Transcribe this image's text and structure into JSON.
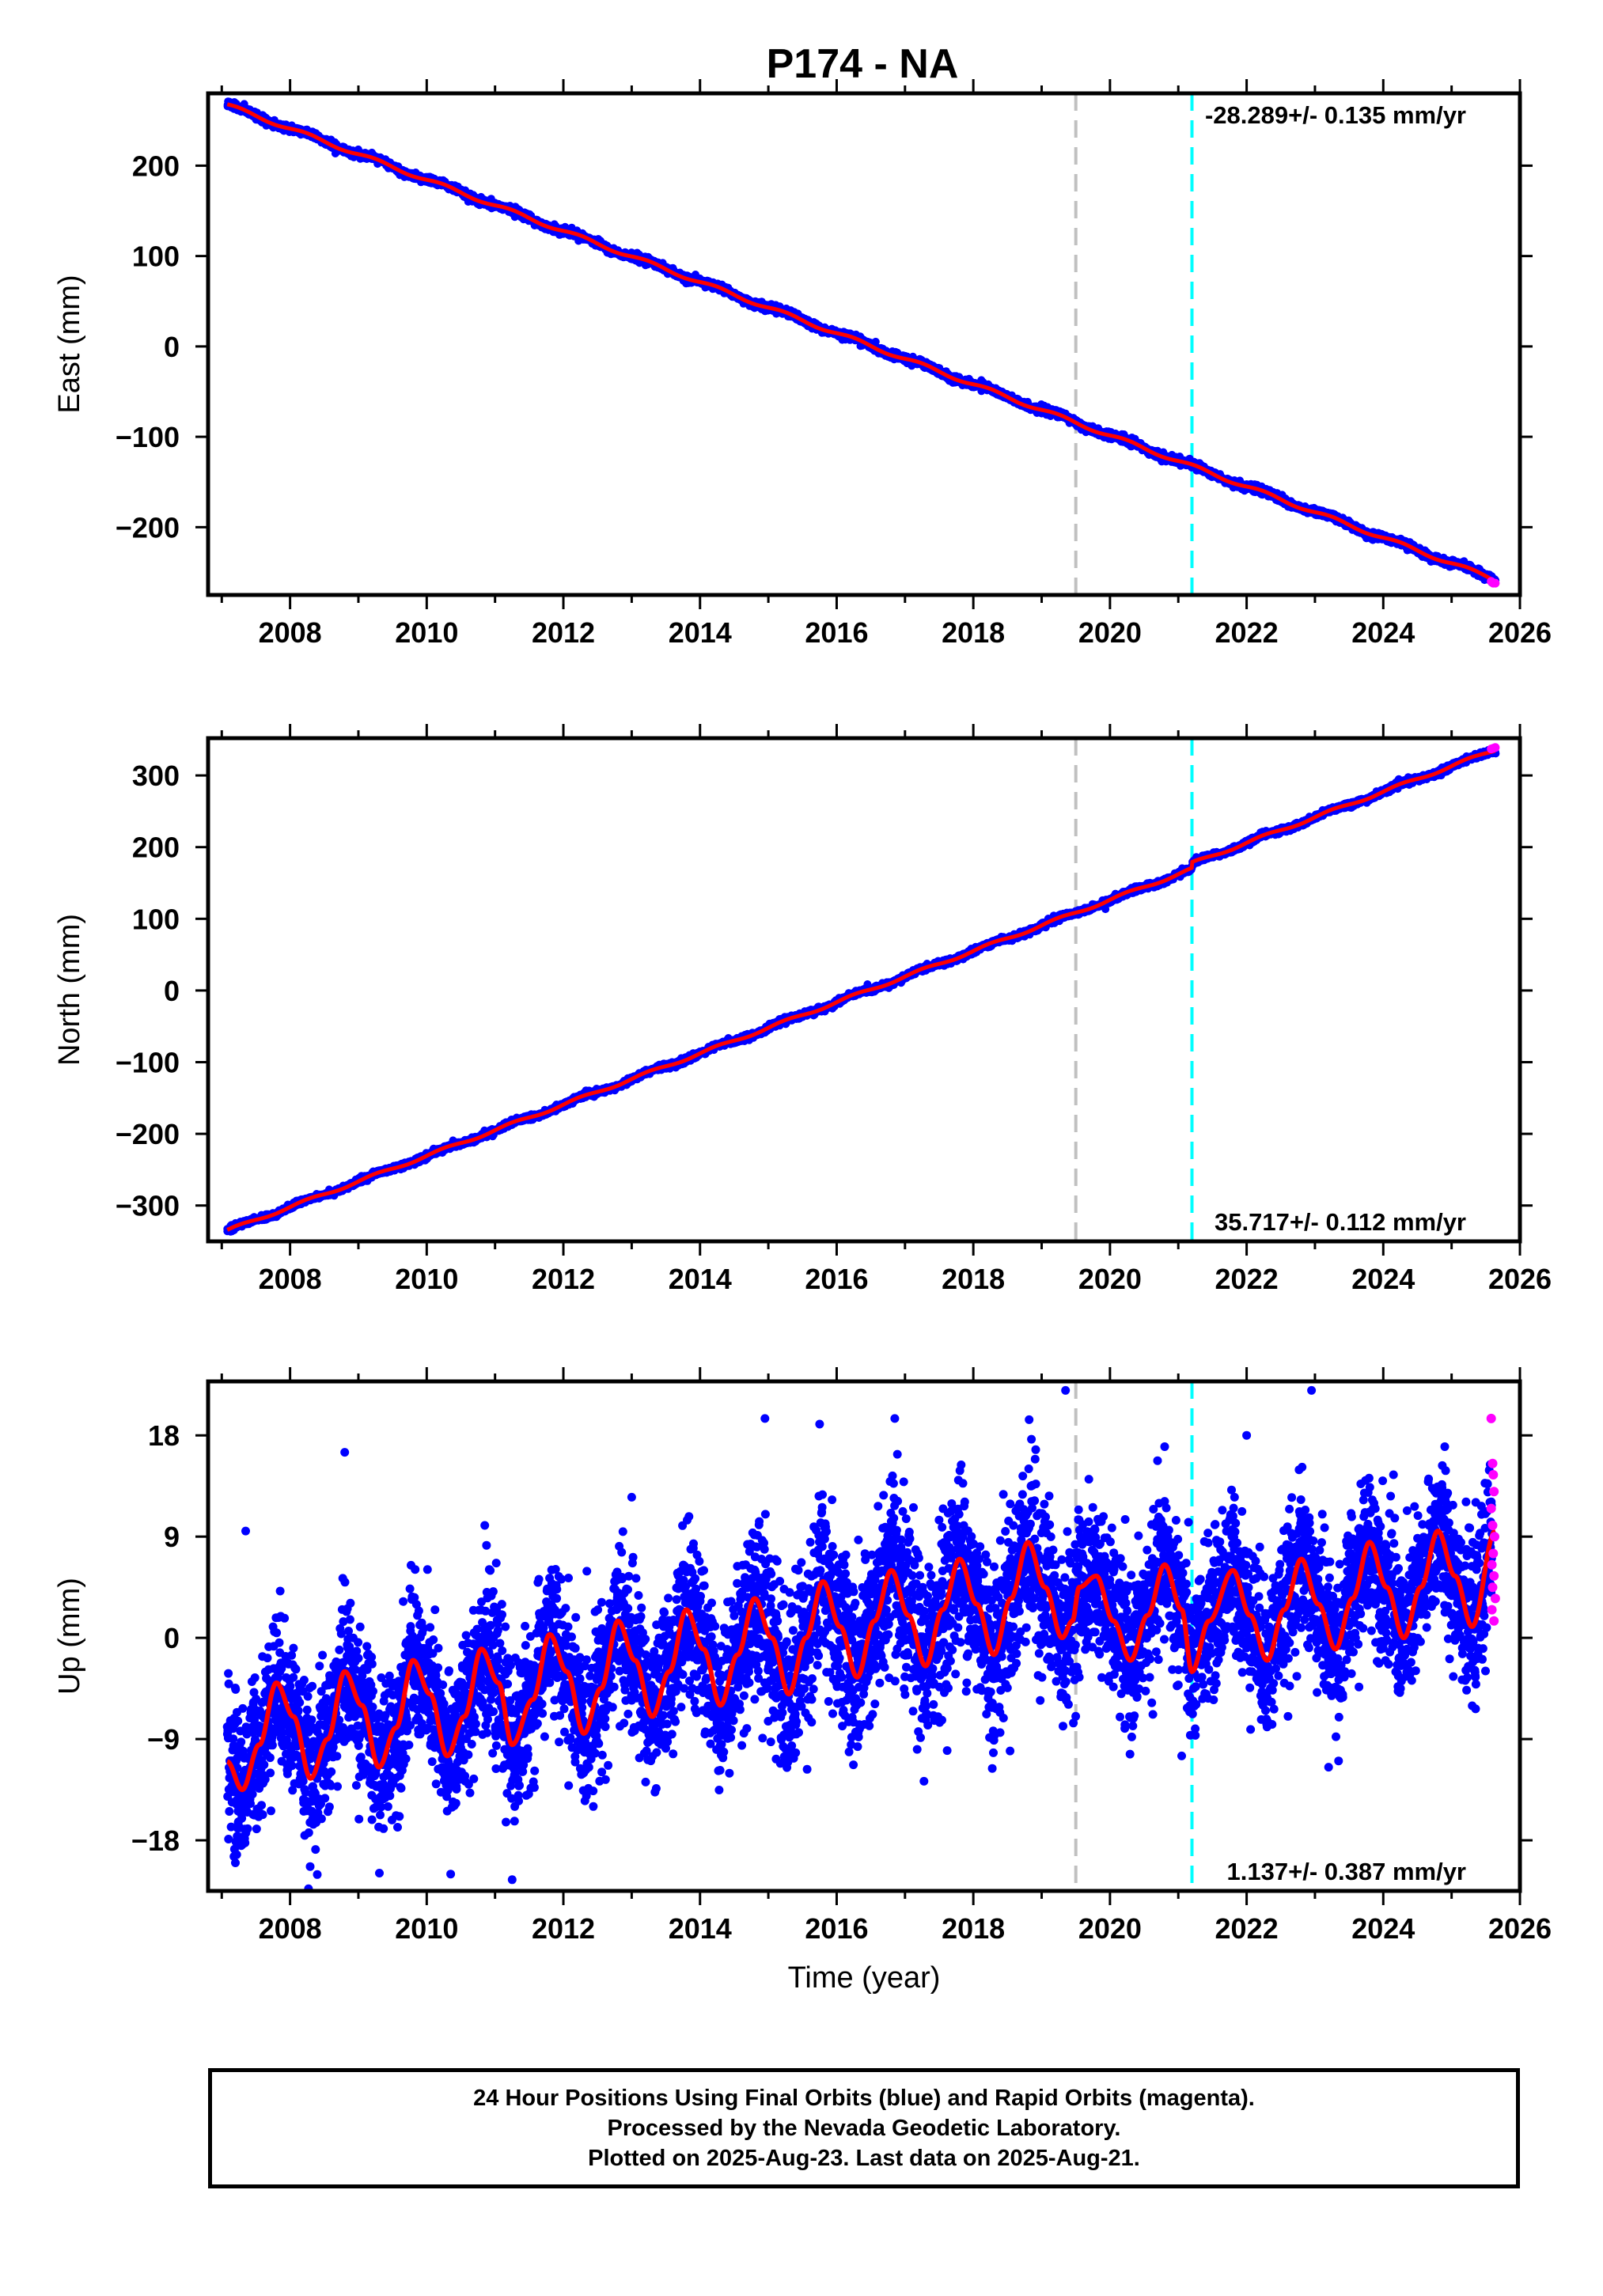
{
  "figure_title": "P174 - NA",
  "colors": {
    "final_orbits": "#0000ff",
    "rapid_orbits": "#ff00ff",
    "model_fit": "#ff0000",
    "grey_marker": "#c0c0c0",
    "cyan_marker": "#00ffff",
    "frame": "#000000"
  },
  "caption": {
    "line1": "24 Hour Positions Using Final Orbits (blue) and Rapid Orbits (magenta).",
    "line2": "Processed by the Nevada Geodetic Laboratory.",
    "line3": "Plotted on 2025-Aug-23. Last data on 2025-Aug-21."
  },
  "chart_data": [
    {
      "type": "scatter",
      "component": "East",
      "ylabel": "East (mm)",
      "xlabel": "",
      "xlim": [
        2006.8,
        2026.0
      ],
      "ylim": [
        -275,
        280
      ],
      "xticks": [
        2008,
        2010,
        2012,
        2014,
        2016,
        2018,
        2020,
        2022,
        2024,
        2026
      ],
      "yticks": [
        -200,
        -100,
        0,
        100,
        200
      ],
      "ytick_labels": [
        "−200",
        "−100",
        "0",
        "100",
        "200"
      ],
      "rate_label": "-28.289+/- 0.135 mm/yr",
      "rate_label_position": "top-right",
      "vertical_markers": [
        {
          "x": 2019.5,
          "color": "grey",
          "style": "dashed"
        },
        {
          "x": 2021.2,
          "color": "cyan",
          "style": "dashed"
        }
      ],
      "data_start": 2007.08,
      "data_end": 2025.64,
      "start_value": 267,
      "trend_mm_per_yr": -28.289,
      "seasonal_amplitude_mm": 2,
      "scatter_mm": 2,
      "model_fit": "linear trend plus annual term",
      "rapid_orbit_points": [
        [
          2025.58,
          -260
        ],
        [
          2025.61,
          -262
        ],
        [
          2025.64,
          -262
        ]
      ]
    },
    {
      "type": "scatter",
      "component": "North",
      "ylabel": "North (mm)",
      "xlabel": "",
      "xlim": [
        2006.8,
        2026.0
      ],
      "ylim": [
        -350,
        352
      ],
      "xticks": [
        2008,
        2010,
        2012,
        2014,
        2016,
        2018,
        2020,
        2022,
        2024,
        2026
      ],
      "yticks": [
        -300,
        -200,
        -100,
        0,
        100,
        200,
        300
      ],
      "ytick_labels": [
        "−300",
        "−200",
        "−100",
        "0",
        "100",
        "200",
        "300"
      ],
      "rate_label": "35.717+/- 0.112 mm/yr",
      "rate_label_position": "bottom-right",
      "vertical_markers": [
        {
          "x": 2019.5,
          "color": "grey",
          "style": "dashed"
        },
        {
          "x": 2021.2,
          "color": "cyan",
          "style": "dashed"
        }
      ],
      "data_start": 2007.08,
      "data_end": 2025.64,
      "start_value": -335,
      "trend_mm_per_yr": 35.717,
      "seasonal_amplitude_mm": 2,
      "scatter_mm": 2,
      "offset_at_2021_2_mm": 8,
      "model_fit": "linear trend plus annual term plus step at 2021.2",
      "rapid_orbit_points": [
        [
          2025.58,
          337
        ],
        [
          2025.61,
          338
        ],
        [
          2025.64,
          339
        ]
      ]
    },
    {
      "type": "scatter",
      "component": "Up",
      "ylabel": "Up (mm)",
      "xlabel": "Time (year)",
      "xlim": [
        2006.8,
        2026.0
      ],
      "ylim": [
        -22.5,
        22.8
      ],
      "xticks": [
        2008,
        2010,
        2012,
        2014,
        2016,
        2018,
        2020,
        2022,
        2024,
        2026
      ],
      "yticks": [
        -18,
        -9,
        0,
        9,
        18
      ],
      "ytick_labels": [
        "−18",
        "−9",
        "0",
        "9",
        "18"
      ],
      "rate_label": "1.137+/- 0.387 mm/yr",
      "rate_label_position": "bottom-right",
      "vertical_markers": [
        {
          "x": 2019.5,
          "color": "grey",
          "style": "dashed"
        },
        {
          "x": 2021.2,
          "color": "cyan",
          "style": "dashed"
        }
      ],
      "data_start": 2007.08,
      "data_end": 2025.64,
      "trend_mm_per_yr": 1.137,
      "model_fit_samples": [
        [
          2007.08,
          -11.0
        ],
        [
          2007.3,
          -13.5
        ],
        [
          2007.55,
          -9.5
        ],
        [
          2007.8,
          -4.0
        ],
        [
          2008.05,
          -7.0
        ],
        [
          2008.3,
          -12.5
        ],
        [
          2008.55,
          -9.0
        ],
        [
          2008.8,
          -3.0
        ],
        [
          2009.05,
          -6.0
        ],
        [
          2009.3,
          -11.5
        ],
        [
          2009.55,
          -8.0
        ],
        [
          2009.8,
          -2.0
        ],
        [
          2010.05,
          -5.0
        ],
        [
          2010.3,
          -10.5
        ],
        [
          2010.55,
          -7.0
        ],
        [
          2010.8,
          -1.0
        ],
        [
          2011.05,
          -4.0
        ],
        [
          2011.25,
          -9.5
        ],
        [
          2011.55,
          -5.5
        ],
        [
          2011.8,
          0.3
        ],
        [
          2012.05,
          -3.0
        ],
        [
          2012.3,
          -8.5
        ],
        [
          2012.55,
          -4.5
        ],
        [
          2012.8,
          1.5
        ],
        [
          2013.05,
          -2.0
        ],
        [
          2013.3,
          -7.0
        ],
        [
          2013.55,
          -3.0
        ],
        [
          2013.8,
          2.5
        ],
        [
          2014.05,
          -1.0
        ],
        [
          2014.3,
          -6.0
        ],
        [
          2014.55,
          -1.5
        ],
        [
          2014.8,
          3.5
        ],
        [
          2015.05,
          0.0
        ],
        [
          2015.3,
          -5.0
        ],
        [
          2015.55,
          0.0
        ],
        [
          2015.8,
          5.0
        ],
        [
          2016.05,
          1.0
        ],
        [
          2016.3,
          -3.5
        ],
        [
          2016.55,
          1.5
        ],
        [
          2016.8,
          6.0
        ],
        [
          2017.05,
          2.0
        ],
        [
          2017.3,
          -2.5
        ],
        [
          2017.55,
          2.5
        ],
        [
          2017.8,
          7.0
        ],
        [
          2018.05,
          3.0
        ],
        [
          2018.3,
          -1.5
        ],
        [
          2018.55,
          3.5
        ],
        [
          2018.8,
          8.5
        ],
        [
          2019.05,
          4.5
        ],
        [
          2019.3,
          0.0
        ],
        [
          2019.45,
          1.5
        ],
        [
          2019.55,
          4.5
        ],
        [
          2019.8,
          5.5
        ],
        [
          2020.05,
          1.5
        ],
        [
          2020.3,
          -2.0
        ],
        [
          2020.55,
          2.0
        ],
        [
          2020.8,
          6.5
        ],
        [
          2021.05,
          2.5
        ],
        [
          2021.2,
          -3.0
        ],
        [
          2021.45,
          1.5
        ],
        [
          2021.8,
          6.0
        ],
        [
          2022.05,
          2.0
        ],
        [
          2022.3,
          -2.0
        ],
        [
          2022.55,
          2.5
        ],
        [
          2022.8,
          7.0
        ],
        [
          2023.05,
          3.0
        ],
        [
          2023.3,
          -1.0
        ],
        [
          2023.55,
          3.5
        ],
        [
          2023.8,
          8.5
        ],
        [
          2024.05,
          4.5
        ],
        [
          2024.3,
          0.0
        ],
        [
          2024.55,
          4.5
        ],
        [
          2024.8,
          9.5
        ],
        [
          2025.05,
          5.5
        ],
        [
          2025.3,
          1.0
        ],
        [
          2025.64,
          9.5
        ]
      ],
      "outlier_points": [
        [
          2008.8,
          16.5
        ],
        [
          2007.35,
          9.5
        ],
        [
          2010.85,
          10.0
        ],
        [
          2019.35,
          22.0
        ],
        [
          2016.85,
          19.5
        ],
        [
          2014.95,
          19.5
        ],
        [
          2015.75,
          19.0
        ],
        [
          2022.95,
          22.0
        ],
        [
          2022.0,
          18.0
        ],
        [
          2020.8,
          17.0
        ],
        [
          2011.25,
          -21.5
        ],
        [
          2010.35,
          -21.0
        ],
        [
          2007.2,
          -20.0
        ],
        [
          2023.2,
          -11.5
        ],
        [
          2021.05,
          -10.5
        ],
        [
          2013.0,
          12.5
        ],
        [
          2024.9,
          17.0
        ],
        [
          2024.15,
          14.5
        ]
      ],
      "rapid_orbit_points": [
        [
          2025.58,
          19.5
        ],
        [
          2025.6,
          15.5
        ],
        [
          2025.61,
          14.5
        ],
        [
          2025.62,
          13.0
        ],
        [
          2025.58,
          11.5
        ],
        [
          2025.6,
          10.0
        ],
        [
          2025.63,
          9.0
        ],
        [
          2025.61,
          7.5
        ],
        [
          2025.59,
          6.5
        ],
        [
          2025.62,
          5.5
        ],
        [
          2025.6,
          4.5
        ],
        [
          2025.64,
          3.5
        ],
        [
          2025.59,
          2.5
        ],
        [
          2025.62,
          1.5
        ]
      ]
    }
  ]
}
